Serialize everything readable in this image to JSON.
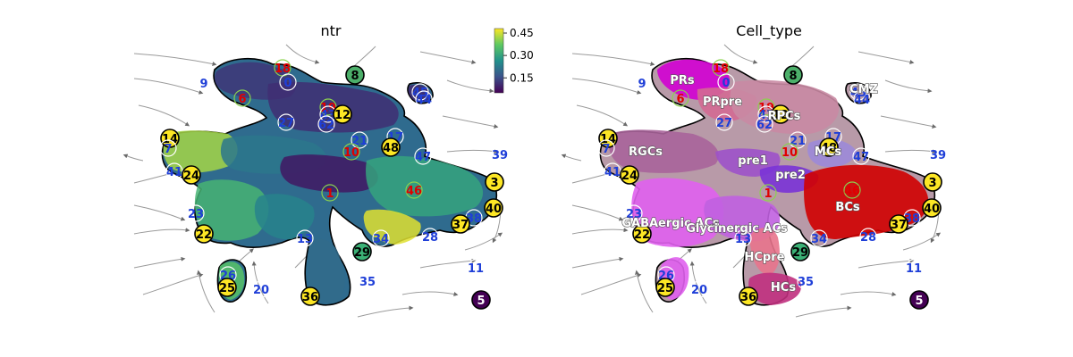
{
  "chart_data": [
    {
      "type": "scatter",
      "title": "ntr",
      "color_by": "ntr",
      "colorbar": {
        "ticks": [
          "0.45",
          "0.30",
          "0.15"
        ],
        "tick_values": [
          0.45,
          0.3,
          0.15
        ],
        "range": [
          0.05,
          0.48
        ],
        "colormap": "viridis",
        "colors": [
          "#440154",
          "#3b528b",
          "#21918c",
          "#5ec962",
          "#fde725"
        ]
      },
      "grid": false,
      "streamlines": true,
      "legend_placement": "top-right",
      "cluster_labels": [
        "18",
        "8",
        "9",
        "0",
        "6",
        "45",
        "44",
        "19",
        "43",
        "12",
        "62",
        "27",
        "21",
        "17",
        "48",
        "14",
        "7",
        "10",
        "47",
        "39",
        "41",
        "24",
        "1",
        "46",
        "3",
        "40",
        "23",
        "38",
        "37",
        "22",
        "28",
        "13",
        "34",
        "29",
        "11",
        "26",
        "25",
        "20",
        "35",
        "36",
        "5"
      ]
    },
    {
      "type": "scatter",
      "title": "Cell_type",
      "color_by": "Cell_type",
      "grid": false,
      "streamlines": true,
      "categories": [
        "PRs",
        "PRpre",
        "RPCs",
        "CMZ",
        "RGCs",
        "pre1",
        "MCs",
        "pre2",
        "BCs",
        "GABAergic ACs",
        "Glycinergic ACs",
        "HCpre",
        "HCs"
      ],
      "category_colors": {
        "PRs": "#d100d1",
        "PRpre": "#d36a92",
        "RPCs": "#c98aa3",
        "CMZ": "#a07d2e",
        "RGCs": "#a8649a",
        "pre1": "#9d52c9",
        "MCs": "#9c8ad8",
        "pre2": "#7a33d6",
        "BCs": "#d00000",
        "GABAergic ACs": "#e060ee",
        "Glycinergic ACs": "#c060e0",
        "HCpre": "#e8748c",
        "HCs": "#c0307e"
      },
      "cluster_labels": [
        "18",
        "8",
        "9",
        "0",
        "6",
        "45",
        "44",
        "19",
        "43",
        "12",
        "62",
        "27",
        "21",
        "17",
        "48",
        "14",
        "7",
        "10",
        "47",
        "39",
        "41",
        "24",
        "1",
        "46",
        "3",
        "40",
        "23",
        "38",
        "37",
        "22",
        "28",
        "13",
        "34",
        "29",
        "11",
        "26",
        "25",
        "20",
        "35",
        "36",
        "5"
      ]
    }
  ]
}
